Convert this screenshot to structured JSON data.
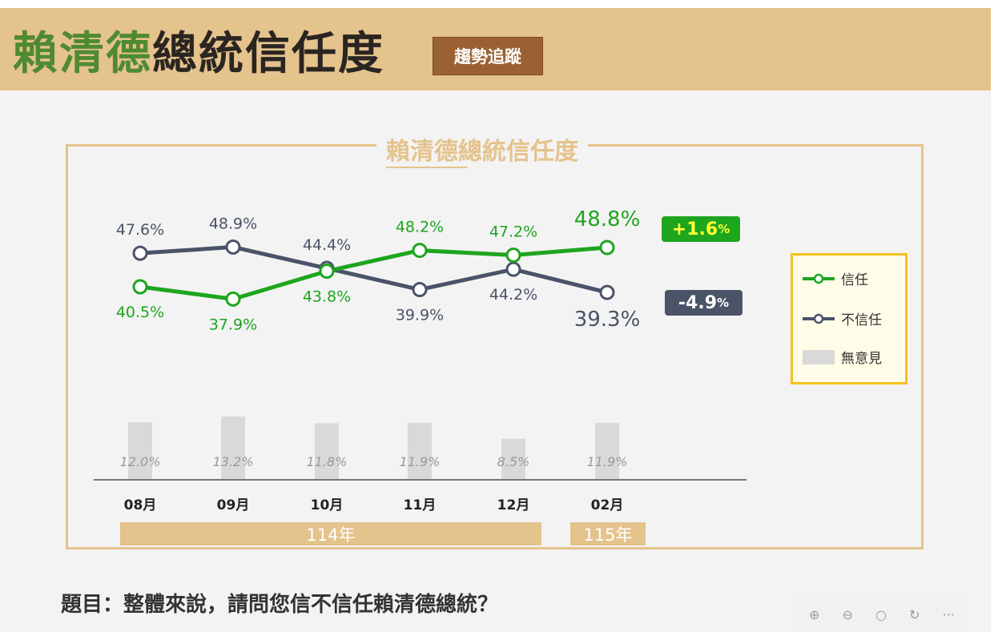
{
  "header": {
    "title_green": "賴清德",
    "title_dark": "總統信任度",
    "badge": "趨勢追蹤"
  },
  "question": "題目：整體來說，請問您信不信任賴清德總統？",
  "toolbar": {
    "icons": [
      "zoom-in-icon",
      "zoom-out-icon",
      "search-icon",
      "rotate-icon",
      "more-icon"
    ],
    "more": "···"
  },
  "colors": {
    "trust": "#1ea51e",
    "distrust": "#4a5368",
    "no_opinion": "#d9d9d9",
    "accent": "#e4c38c"
  },
  "chart_data": {
    "type": "line",
    "title": "賴清德總統信任度",
    "categories": [
      "08月",
      "09月",
      "10月",
      "11月",
      "12月",
      "02月"
    ],
    "year_groups": [
      {
        "label": "114年",
        "span": [
          "08月",
          "12月"
        ]
      },
      {
        "label": "115年",
        "span": [
          "02月",
          "02月"
        ]
      }
    ],
    "series": [
      {
        "name": "信任",
        "type": "line",
        "values": [
          40.5,
          37.9,
          43.8,
          48.2,
          47.2,
          48.8
        ],
        "labels": [
          "40.5%",
          "37.9%",
          "43.8%",
          "48.2%",
          "47.2%",
          "48.8%"
        ]
      },
      {
        "name": "不信任",
        "type": "line",
        "values": [
          47.6,
          48.9,
          44.4,
          39.9,
          44.2,
          39.3
        ],
        "labels": [
          "47.6%",
          "48.9%",
          "44.4%",
          "39.9%",
          "44.2%",
          "39.3%"
        ]
      },
      {
        "name": "無意見",
        "type": "bar",
        "values": [
          12.0,
          13.2,
          11.8,
          11.9,
          8.5,
          11.9
        ],
        "labels": [
          "12.0%",
          "13.2%",
          "11.8%",
          "11.9%",
          "8.5%",
          "11.9%"
        ]
      }
    ],
    "changes": {
      "trust": "+1.6",
      "distrust": "-4.9",
      "unit": "%"
    },
    "legend": {
      "position": "right",
      "items": [
        "信任",
        "不信任",
        "無意見"
      ]
    }
  }
}
